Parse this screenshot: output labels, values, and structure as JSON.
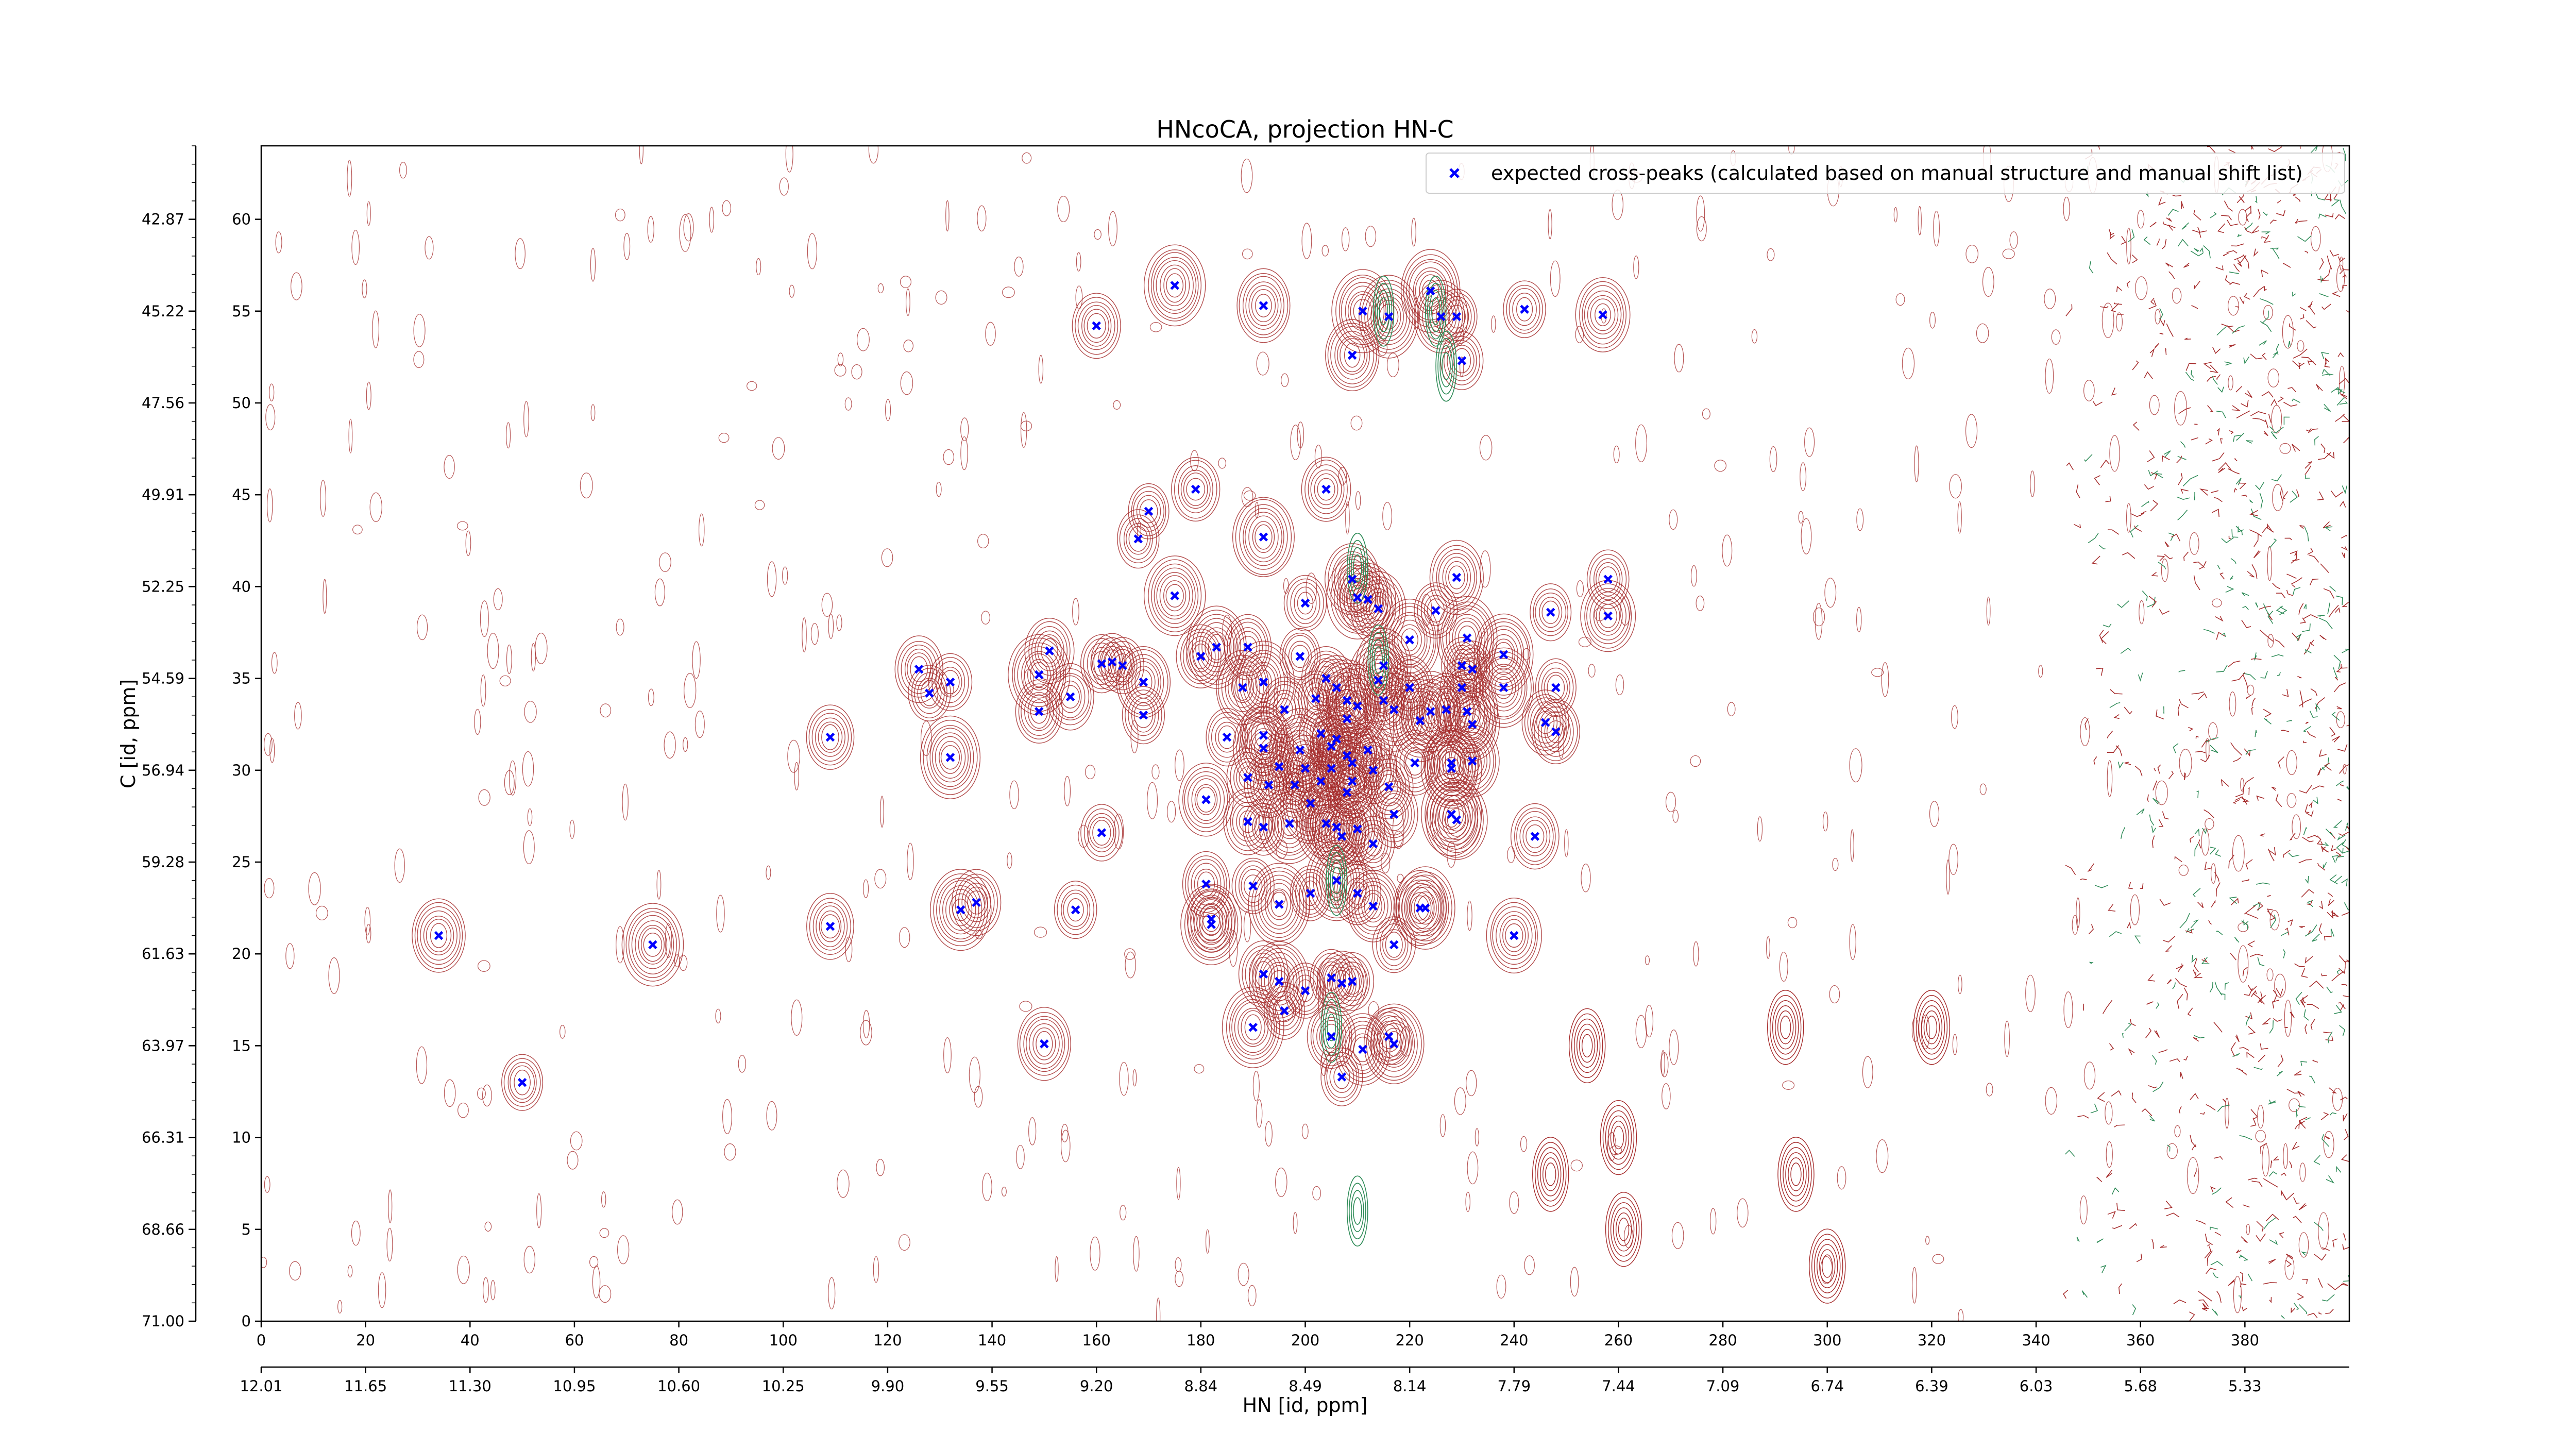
{
  "chart_data": {
    "type": "scatter",
    "title": "HNcoCA, projection HN-C",
    "xlabel": "HN [id, ppm]",
    "ylabel": "C [id, ppm]",
    "xlim": [
      0,
      400
    ],
    "ylim": [
      0,
      64
    ],
    "x_ticks_index": [
      0,
      20,
      40,
      60,
      80,
      100,
      120,
      140,
      160,
      180,
      200,
      220,
      240,
      260,
      280,
      300,
      320,
      340,
      360,
      380
    ],
    "x_ticks_ppm": [
      "12.01",
      "11.65",
      "11.30",
      "10.95",
      "10.60",
      "10.25",
      "9.90",
      "9.55",
      "9.20",
      "8.84",
      "8.49",
      "8.14",
      "7.79",
      "7.44",
      "7.09",
      "6.74",
      "6.39",
      "6.03",
      "5.68",
      "5.33"
    ],
    "y_ticks_index": [
      0,
      5,
      10,
      15,
      20,
      25,
      30,
      35,
      40,
      45,
      50,
      55,
      60
    ],
    "y_ticks_ppm": [
      "71.00",
      "68.66",
      "66.31",
      "63.97",
      "61.63",
      "59.28",
      "56.94",
      "54.59",
      "52.25",
      "49.91",
      "47.56",
      "45.22",
      "42.87"
    ],
    "grid": false,
    "legend": {
      "location": "top-right",
      "entries": [
        "expected cross-peaks (calculated based on manual structure and manual shift list)"
      ]
    },
    "series": [
      {
        "name": "expected cross-peaks (calculated based on manual structure and manual shift list)",
        "color": "#0000ff",
        "marker": "x",
        "points": [
          [
            34,
            21
          ],
          [
            50,
            13
          ],
          [
            75,
            20.5
          ],
          [
            109,
            31.8
          ],
          [
            109,
            21.5
          ],
          [
            126,
            35.5
          ],
          [
            128,
            34.2
          ],
          [
            132,
            30.7
          ],
          [
            132,
            34.8
          ],
          [
            134,
            22.4
          ],
          [
            137,
            22.8
          ],
          [
            149,
            33.2
          ],
          [
            149,
            35.2
          ],
          [
            150,
            15.1
          ],
          [
            151,
            36.5
          ],
          [
            155,
            34.0
          ],
          [
            160,
            54.2
          ],
          [
            161,
            35.8
          ],
          [
            156,
            22.4
          ],
          [
            161,
            26.6
          ],
          [
            163,
            35.9
          ],
          [
            165,
            35.7
          ],
          [
            168,
            42.6
          ],
          [
            169,
            34.8
          ],
          [
            169,
            33.0
          ],
          [
            170,
            44.1
          ],
          [
            175,
            56.4
          ],
          [
            175,
            39.5
          ],
          [
            179,
            45.3
          ],
          [
            180,
            36.2
          ],
          [
            181,
            28.4
          ],
          [
            181,
            23.8
          ],
          [
            182,
            21.9
          ],
          [
            182,
            21.6
          ],
          [
            183,
            36.7
          ],
          [
            185,
            31.8
          ],
          [
            188,
            34.5
          ],
          [
            189,
            29.6
          ],
          [
            189,
            36.7
          ],
          [
            189,
            27.2
          ],
          [
            190,
            23.7
          ],
          [
            190,
            16.0
          ],
          [
            192,
            55.3
          ],
          [
            192,
            42.7
          ],
          [
            192,
            34.8
          ],
          [
            192,
            31.9
          ],
          [
            192,
            31.2
          ],
          [
            192,
            26.9
          ],
          [
            192,
            18.9
          ],
          [
            193,
            29.2
          ],
          [
            195,
            22.7
          ],
          [
            195,
            18.5
          ],
          [
            195,
            30.2
          ],
          [
            196,
            33.3
          ],
          [
            196,
            16.9
          ],
          [
            197,
            27.1
          ],
          [
            198,
            29.2
          ],
          [
            200,
            39.1
          ],
          [
            199,
            36.2
          ],
          [
            199,
            31.1
          ],
          [
            200,
            30.1
          ],
          [
            200,
            18.0
          ],
          [
            201,
            28.2
          ],
          [
            201,
            23.3
          ],
          [
            202,
            33.9
          ],
          [
            203,
            32.0
          ],
          [
            203,
            29.4
          ],
          [
            204,
            45.3
          ],
          [
            204,
            35.0
          ],
          [
            204,
            27.1
          ],
          [
            205,
            31.3
          ],
          [
            205,
            30.1
          ],
          [
            205,
            18.7
          ],
          [
            205,
            15.5
          ],
          [
            206,
            34.5
          ],
          [
            206,
            31.7
          ],
          [
            206,
            26.9
          ],
          [
            206,
            24.0
          ],
          [
            207,
            26.4
          ],
          [
            207,
            18.4
          ],
          [
            207,
            13.3
          ],
          [
            208,
            33.8
          ],
          [
            208,
            32.8
          ],
          [
            208,
            30.8
          ],
          [
            208,
            28.8
          ],
          [
            209,
            52.6
          ],
          [
            209,
            40.4
          ],
          [
            209,
            30.4
          ],
          [
            209,
            29.4
          ],
          [
            209,
            18.5
          ],
          [
            210,
            33.5
          ],
          [
            210,
            39.4
          ],
          [
            210,
            26.8
          ],
          [
            210,
            23.3
          ],
          [
            211,
            55.0
          ],
          [
            211,
            14.8
          ],
          [
            212,
            39.3
          ],
          [
            212,
            31.1
          ],
          [
            213,
            30.0
          ],
          [
            213,
            26.0
          ],
          [
            213,
            22.6
          ],
          [
            214,
            38.8
          ],
          [
            214,
            34.9
          ],
          [
            215,
            35.7
          ],
          [
            215,
            33.8
          ],
          [
            216,
            54.7
          ],
          [
            216,
            29.1
          ],
          [
            216,
            15.5
          ],
          [
            217,
            33.3
          ],
          [
            217,
            27.6
          ],
          [
            217,
            20.5
          ],
          [
            217,
            15.1
          ],
          [
            220,
            37.1
          ],
          [
            220,
            34.5
          ],
          [
            221,
            30.4
          ],
          [
            222,
            32.7
          ],
          [
            222,
            22.5
          ],
          [
            223,
            22.5
          ],
          [
            224,
            33.2
          ],
          [
            224,
            56.1
          ],
          [
            225,
            38.7
          ],
          [
            226,
            54.7
          ],
          [
            227,
            33.3
          ],
          [
            228,
            30.1
          ],
          [
            228,
            30.4
          ],
          [
            228,
            27.6
          ],
          [
            229,
            54.7
          ],
          [
            229,
            40.5
          ],
          [
            229,
            27.3
          ],
          [
            230,
            34.5
          ],
          [
            230,
            52.3
          ],
          [
            230,
            35.7
          ],
          [
            231,
            37.2
          ],
          [
            231,
            33.2
          ],
          [
            232,
            32.5
          ],
          [
            232,
            30.5
          ],
          [
            232,
            35.5
          ],
          [
            238,
            36.3
          ],
          [
            238,
            34.5
          ],
          [
            240,
            21.0
          ],
          [
            242,
            55.1
          ],
          [
            244,
            26.4
          ],
          [
            246,
            32.6
          ],
          [
            247,
            38.6
          ],
          [
            248,
            34.5
          ],
          [
            248,
            32.1
          ],
          [
            257,
            54.8
          ],
          [
            258,
            40.4
          ],
          [
            258,
            38.4
          ]
        ]
      }
    ],
    "contours": {
      "positive_color": "#a52a2a",
      "negative_color": "#2e8b57"
    }
  }
}
